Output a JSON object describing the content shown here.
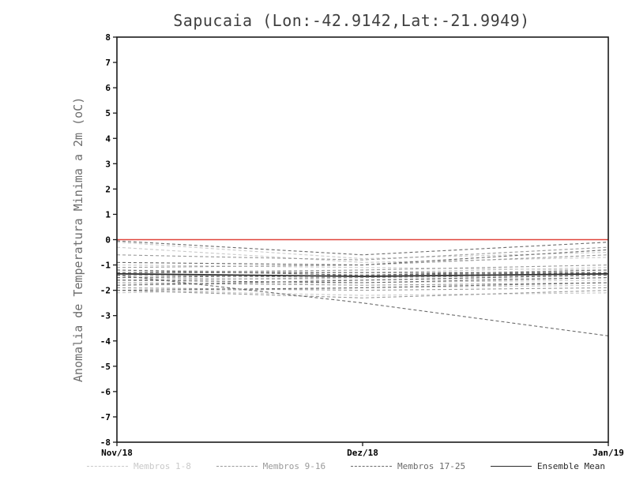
{
  "chart_data": {
    "type": "line",
    "title": "Sapucaia (Lon:-42.9142,Lat:-21.9949)",
    "ylabel": "Anomalia de Temperatura Minima a 2m (oC)",
    "xlabel": "",
    "x_categories": [
      "Nov/18",
      "Dez/18",
      "Jan/19"
    ],
    "ylim": [
      -8,
      8
    ],
    "ytick_step": 1,
    "grid": false,
    "legend_position": "bottom",
    "zero_line": {
      "value": 0,
      "color": "#e0443a"
    },
    "frame_color": "#1a1a1a",
    "groups": [
      {
        "label": "Membros 1-8",
        "color": "#c9c9c9",
        "style": "dashed",
        "members": [
          [
            -0.1,
            -0.75,
            -0.5
          ],
          [
            -0.3,
            -0.9,
            -0.7
          ],
          [
            -1.0,
            -1.1,
            -1.2
          ],
          [
            -1.2,
            -1.3,
            -1.1
          ],
          [
            -1.5,
            -1.6,
            -1.5
          ],
          [
            -1.8,
            -1.7,
            -1.6
          ],
          [
            -2.0,
            -2.2,
            -2.1
          ],
          [
            -2.1,
            -1.9,
            -1.8
          ]
        ]
      },
      {
        "label": "Membros 9-16",
        "color": "#9a9a9a",
        "style": "dashed",
        "members": [
          [
            -0.6,
            -0.8,
            -0.3
          ],
          [
            -1.1,
            -1.0,
            -0.6
          ],
          [
            -1.3,
            -1.2,
            -1.0
          ],
          [
            -1.4,
            -1.5,
            -1.3
          ],
          [
            -1.6,
            -1.5,
            -1.4
          ],
          [
            -1.7,
            -1.8,
            -1.7
          ],
          [
            -1.9,
            -2.0,
            -1.9
          ],
          [
            -2.0,
            -2.3,
            -2.0
          ]
        ]
      },
      {
        "label": "Membros 17-25",
        "color": "#6b6b6b",
        "style": "dashed",
        "members": [
          [
            -0.05,
            -0.6,
            -0.1
          ],
          [
            -0.9,
            -1.0,
            -0.4
          ],
          [
            -1.2,
            -1.4,
            -1.2
          ],
          [
            -1.3,
            -1.3,
            -1.3
          ],
          [
            -1.5,
            -1.4,
            -1.3
          ],
          [
            -1.6,
            -1.7,
            -1.5
          ],
          [
            -1.8,
            -1.6,
            -1.4
          ],
          [
            -2.0,
            -1.9,
            -1.7
          ],
          [
            -1.4,
            -2.5,
            -3.8
          ]
        ]
      }
    ],
    "ensemble_mean": {
      "label": "Ensemble Mean",
      "color": "#2b2b2b",
      "style": "solid",
      "values": [
        -1.35,
        -1.45,
        -1.35
      ]
    }
  }
}
